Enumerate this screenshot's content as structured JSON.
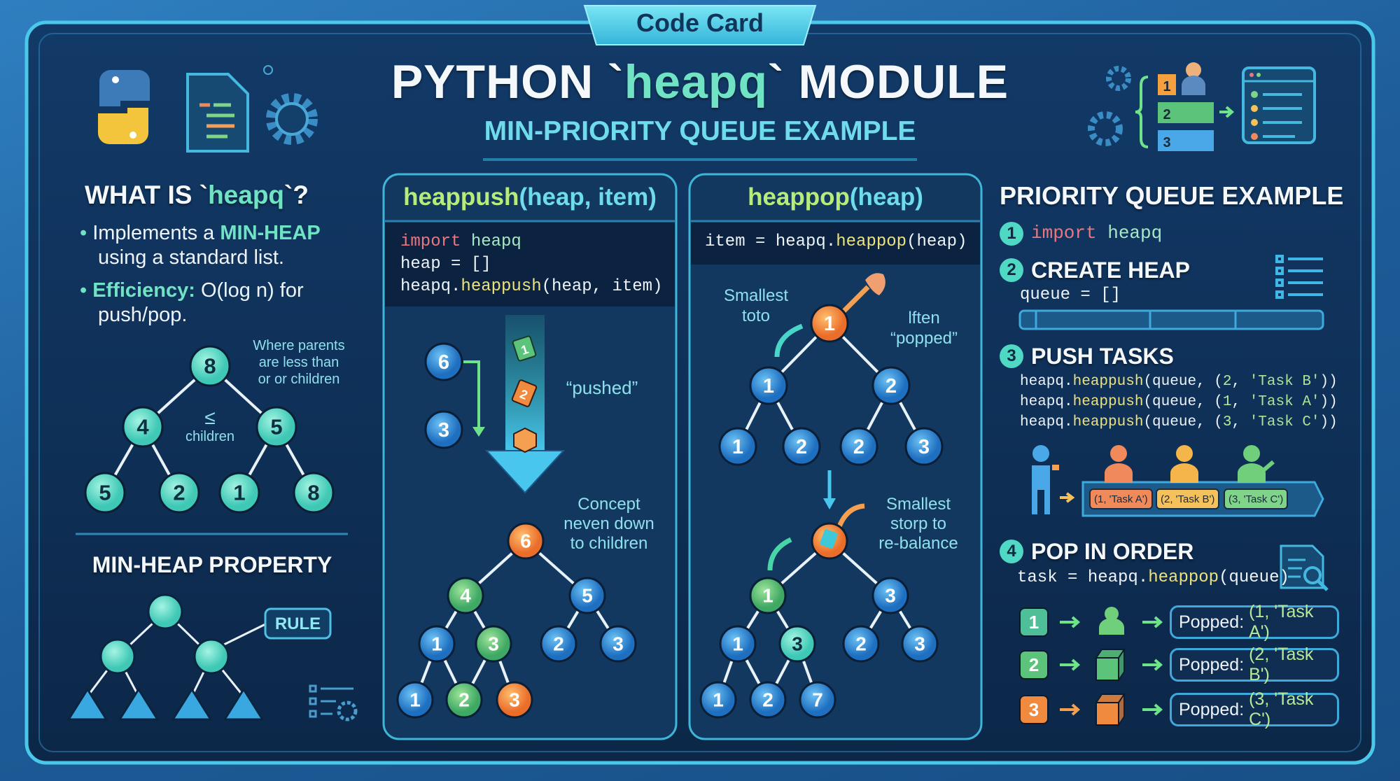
{
  "tab_label": "Code Card",
  "title": {
    "prefix": "PYTHON `",
    "highlight": "heapq",
    "suffix": "` MODULE",
    "subtitle": "MIN-PRIORITY QUEUE EXAMPLE"
  },
  "colors": {
    "accent": "#6fe3c3",
    "frame": "#49c8ea",
    "card_bg": "#0e2b50",
    "node_blue": "#2f8fd8",
    "node_green": "#5cc47a",
    "node_orange": "#f5923a",
    "node_teal": "#5fe0c8",
    "function": "#ece27e",
    "keyword": "#ec7680"
  },
  "what_is": {
    "heading_prefix": "WHAT IS `",
    "heading_highlight": "heapq",
    "heading_suffix": "`?",
    "bullet1_prefix": "Implements a ",
    "bullet1_highlight": "MIN-HEAP",
    "bullet1_line2": "using a standard list.",
    "bullet2_highlight": "Efficiency:",
    "bullet2_text": " O(log n) for",
    "bullet2_line2": "push/pop.",
    "tree_caption": [
      "Where parents",
      "are less than",
      "or or children"
    ],
    "tree_symbol": "≤",
    "tree_symbol_label": "children",
    "tree": [
      {
        "value": "8",
        "color": "teal"
      },
      {
        "value": "4",
        "color": "teal"
      },
      {
        "value": "5",
        "color": "teal"
      },
      {
        "value": "5",
        "color": "teal"
      },
      {
        "value": "2",
        "color": "teal"
      },
      {
        "value": "1",
        "color": "teal"
      },
      {
        "value": "8",
        "color": "teal"
      }
    ]
  },
  "min_heap_property": {
    "heading": "MIN-HEAP PROPERTY",
    "rule_label": "RULE"
  },
  "push_panel": {
    "title_fn": "heappush",
    "title_args": "(heap, item)",
    "code": [
      [
        {
          "text": "import",
          "style": "kw"
        },
        {
          "text": " heapq",
          "style": "mod"
        }
      ],
      [
        {
          "text": "heap = []",
          "style": "plain"
        }
      ],
      [
        {
          "text": "heapq.",
          "style": "plain"
        },
        {
          "text": "heappush",
          "style": "fn"
        },
        {
          "text": "(heap, item)",
          "style": "plain"
        }
      ]
    ],
    "incoming_nodes": [
      "6",
      "3"
    ],
    "falling_items": [
      "1",
      "2"
    ],
    "pushed_label": "“pushed”",
    "concept_label": [
      "Concept",
      "neven down",
      "to children"
    ],
    "tree": [
      {
        "value": "6",
        "color": "orange"
      },
      {
        "value": "4",
        "color": "green"
      },
      {
        "value": "5",
        "color": "blue"
      },
      {
        "value": "1",
        "color": "blue"
      },
      {
        "value": "3",
        "color": "green"
      },
      {
        "value": "2",
        "color": "blue"
      },
      {
        "value": "3",
        "color": "blue"
      },
      {
        "value": "1",
        "color": "blue"
      },
      {
        "value": "2",
        "color": "green"
      },
      {
        "value": "3",
        "color": "orange"
      }
    ]
  },
  "pop_panel": {
    "title_fn": "heappop",
    "title_args": "(heap)",
    "code": [
      [
        {
          "text": "item = heapq.",
          "style": "plain"
        },
        {
          "text": "heappop",
          "style": "fn"
        },
        {
          "text": "(heap)",
          "style": "plain"
        }
      ]
    ],
    "smallest_label": [
      "Smallest",
      "toto"
    ],
    "popped_label": [
      "lften",
      "“popped”"
    ],
    "rebalance_label": [
      "Smallest",
      "storp to",
      "re-balance"
    ],
    "tree_top": [
      {
        "value": "1",
        "color": "orange"
      },
      {
        "value": "1",
        "color": "blue"
      },
      {
        "value": "2",
        "color": "blue"
      },
      {
        "value": "1",
        "color": "blue"
      },
      {
        "value": "2",
        "color": "blue"
      },
      {
        "value": "2",
        "color": "blue"
      },
      {
        "value": "3",
        "color": "blue"
      }
    ],
    "tree_bottom": [
      {
        "value": "",
        "color": "orange"
      },
      {
        "value": "1",
        "color": "green"
      },
      {
        "value": "3",
        "color": "blue"
      },
      {
        "value": "1",
        "color": "blue"
      },
      {
        "value": "3",
        "color": "teal"
      },
      {
        "value": "2",
        "color": "blue"
      },
      {
        "value": "3",
        "color": "blue"
      },
      {
        "value": "1",
        "color": "blue"
      },
      {
        "value": "2",
        "color": "blue"
      },
      {
        "value": "7",
        "color": "blue"
      }
    ]
  },
  "priority_example": {
    "heading": "PRIORITY QUEUE EXAMPLE",
    "step1": {
      "badge": "1",
      "code": [
        {
          "text": "import",
          "style": "kw"
        },
        {
          "text": " heapq",
          "style": "mod"
        }
      ]
    },
    "step2": {
      "badge": "2",
      "title": "CREATE HEAP",
      "code": [
        {
          "text": "queue = []",
          "style": "plain"
        }
      ]
    },
    "step3": {
      "badge": "3",
      "title": "PUSH TASKS",
      "code": [
        [
          {
            "text": "heapq.",
            "style": "plain"
          },
          {
            "text": "heappush",
            "style": "fn"
          },
          {
            "text": "(queue, (",
            "style": "plain"
          },
          {
            "text": "2",
            "style": "num"
          },
          {
            "text": ", ",
            "style": "plain"
          },
          {
            "text": "'Task B'",
            "style": "str"
          },
          {
            "text": "))",
            "style": "plain"
          }
        ],
        [
          {
            "text": "heapq.",
            "style": "plain"
          },
          {
            "text": "heappush",
            "style": "fn"
          },
          {
            "text": "(queue, (",
            "style": "plain"
          },
          {
            "text": "1",
            "style": "num"
          },
          {
            "text": ", ",
            "style": "plain"
          },
          {
            "text": "'Task A'",
            "style": "str"
          },
          {
            "text": "))",
            "style": "plain"
          }
        ],
        [
          {
            "text": "heapq.",
            "style": "plain"
          },
          {
            "text": "heappush",
            "style": "fn"
          },
          {
            "text": "(queue, (",
            "style": "plain"
          },
          {
            "text": "3",
            "style": "num"
          },
          {
            "text": ", ",
            "style": "plain"
          },
          {
            "text": "'Task C'",
            "style": "str"
          },
          {
            "text": "))",
            "style": "plain"
          }
        ]
      ],
      "queue_items": [
        {
          "label": "(1, 'Task A')",
          "color": "#f08a5a"
        },
        {
          "label": "(2, 'Task B')",
          "color": "#f4c15a"
        },
        {
          "label": "(3, 'Task C')",
          "color": "#7fd48a"
        }
      ]
    },
    "step4": {
      "badge": "4",
      "title": "POP IN ORDER",
      "code": [
        {
          "text": "task = heapq.",
          "style": "plain"
        },
        {
          "text": "heappop",
          "style": "fn"
        },
        {
          "text": "(queue)",
          "style": "plain"
        }
      ],
      "results": [
        {
          "num": "1",
          "color": "#4fbf9a",
          "icon": "person-icon",
          "prefix": "Popped: ",
          "value": "(1, 'Task A')"
        },
        {
          "num": "2",
          "color": "#5cc47a",
          "icon": "box-icon",
          "prefix": "Popped: ",
          "value": "(2, 'Task B')"
        },
        {
          "num": "3",
          "color": "#f08a3e",
          "icon": "box-icon",
          "prefix": "Popped: ",
          "value": "(3, 'Task C')"
        }
      ]
    }
  }
}
